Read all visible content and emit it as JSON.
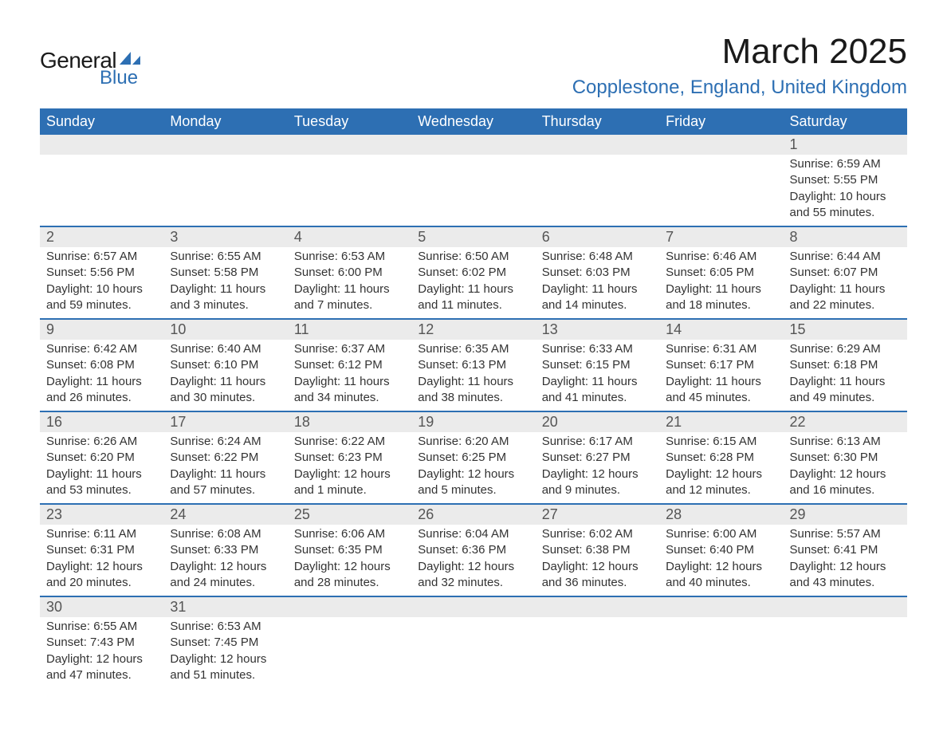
{
  "logo": {
    "text_general": "General",
    "text_blue": "Blue",
    "icon_color": "#2d6fb3"
  },
  "title": "March 2025",
  "location": "Copplestone, England, United Kingdom",
  "colors": {
    "header_bg": "#2d6fb3",
    "header_text": "#ffffff",
    "daynum_bg": "#ebebeb",
    "border": "#2d6fb3",
    "body_text": "#333333",
    "location_text": "#2d6fb3"
  },
  "weekdays": [
    "Sunday",
    "Monday",
    "Tuesday",
    "Wednesday",
    "Thursday",
    "Friday",
    "Saturday"
  ],
  "weeks": [
    [
      {
        "day": "",
        "sunrise": "",
        "sunset": "",
        "daylight1": "",
        "daylight2": ""
      },
      {
        "day": "",
        "sunrise": "",
        "sunset": "",
        "daylight1": "",
        "daylight2": ""
      },
      {
        "day": "",
        "sunrise": "",
        "sunset": "",
        "daylight1": "",
        "daylight2": ""
      },
      {
        "day": "",
        "sunrise": "",
        "sunset": "",
        "daylight1": "",
        "daylight2": ""
      },
      {
        "day": "",
        "sunrise": "",
        "sunset": "",
        "daylight1": "",
        "daylight2": ""
      },
      {
        "day": "",
        "sunrise": "",
        "sunset": "",
        "daylight1": "",
        "daylight2": ""
      },
      {
        "day": "1",
        "sunrise": "Sunrise: 6:59 AM",
        "sunset": "Sunset: 5:55 PM",
        "daylight1": "Daylight: 10 hours",
        "daylight2": "and 55 minutes."
      }
    ],
    [
      {
        "day": "2",
        "sunrise": "Sunrise: 6:57 AM",
        "sunset": "Sunset: 5:56 PM",
        "daylight1": "Daylight: 10 hours",
        "daylight2": "and 59 minutes."
      },
      {
        "day": "3",
        "sunrise": "Sunrise: 6:55 AM",
        "sunset": "Sunset: 5:58 PM",
        "daylight1": "Daylight: 11 hours",
        "daylight2": "and 3 minutes."
      },
      {
        "day": "4",
        "sunrise": "Sunrise: 6:53 AM",
        "sunset": "Sunset: 6:00 PM",
        "daylight1": "Daylight: 11 hours",
        "daylight2": "and 7 minutes."
      },
      {
        "day": "5",
        "sunrise": "Sunrise: 6:50 AM",
        "sunset": "Sunset: 6:02 PM",
        "daylight1": "Daylight: 11 hours",
        "daylight2": "and 11 minutes."
      },
      {
        "day": "6",
        "sunrise": "Sunrise: 6:48 AM",
        "sunset": "Sunset: 6:03 PM",
        "daylight1": "Daylight: 11 hours",
        "daylight2": "and 14 minutes."
      },
      {
        "day": "7",
        "sunrise": "Sunrise: 6:46 AM",
        "sunset": "Sunset: 6:05 PM",
        "daylight1": "Daylight: 11 hours",
        "daylight2": "and 18 minutes."
      },
      {
        "day": "8",
        "sunrise": "Sunrise: 6:44 AM",
        "sunset": "Sunset: 6:07 PM",
        "daylight1": "Daylight: 11 hours",
        "daylight2": "and 22 minutes."
      }
    ],
    [
      {
        "day": "9",
        "sunrise": "Sunrise: 6:42 AM",
        "sunset": "Sunset: 6:08 PM",
        "daylight1": "Daylight: 11 hours",
        "daylight2": "and 26 minutes."
      },
      {
        "day": "10",
        "sunrise": "Sunrise: 6:40 AM",
        "sunset": "Sunset: 6:10 PM",
        "daylight1": "Daylight: 11 hours",
        "daylight2": "and 30 minutes."
      },
      {
        "day": "11",
        "sunrise": "Sunrise: 6:37 AM",
        "sunset": "Sunset: 6:12 PM",
        "daylight1": "Daylight: 11 hours",
        "daylight2": "and 34 minutes."
      },
      {
        "day": "12",
        "sunrise": "Sunrise: 6:35 AM",
        "sunset": "Sunset: 6:13 PM",
        "daylight1": "Daylight: 11 hours",
        "daylight2": "and 38 minutes."
      },
      {
        "day": "13",
        "sunrise": "Sunrise: 6:33 AM",
        "sunset": "Sunset: 6:15 PM",
        "daylight1": "Daylight: 11 hours",
        "daylight2": "and 41 minutes."
      },
      {
        "day": "14",
        "sunrise": "Sunrise: 6:31 AM",
        "sunset": "Sunset: 6:17 PM",
        "daylight1": "Daylight: 11 hours",
        "daylight2": "and 45 minutes."
      },
      {
        "day": "15",
        "sunrise": "Sunrise: 6:29 AM",
        "sunset": "Sunset: 6:18 PM",
        "daylight1": "Daylight: 11 hours",
        "daylight2": "and 49 minutes."
      }
    ],
    [
      {
        "day": "16",
        "sunrise": "Sunrise: 6:26 AM",
        "sunset": "Sunset: 6:20 PM",
        "daylight1": "Daylight: 11 hours",
        "daylight2": "and 53 minutes."
      },
      {
        "day": "17",
        "sunrise": "Sunrise: 6:24 AM",
        "sunset": "Sunset: 6:22 PM",
        "daylight1": "Daylight: 11 hours",
        "daylight2": "and 57 minutes."
      },
      {
        "day": "18",
        "sunrise": "Sunrise: 6:22 AM",
        "sunset": "Sunset: 6:23 PM",
        "daylight1": "Daylight: 12 hours",
        "daylight2": "and 1 minute."
      },
      {
        "day": "19",
        "sunrise": "Sunrise: 6:20 AM",
        "sunset": "Sunset: 6:25 PM",
        "daylight1": "Daylight: 12 hours",
        "daylight2": "and 5 minutes."
      },
      {
        "day": "20",
        "sunrise": "Sunrise: 6:17 AM",
        "sunset": "Sunset: 6:27 PM",
        "daylight1": "Daylight: 12 hours",
        "daylight2": "and 9 minutes."
      },
      {
        "day": "21",
        "sunrise": "Sunrise: 6:15 AM",
        "sunset": "Sunset: 6:28 PM",
        "daylight1": "Daylight: 12 hours",
        "daylight2": "and 12 minutes."
      },
      {
        "day": "22",
        "sunrise": "Sunrise: 6:13 AM",
        "sunset": "Sunset: 6:30 PM",
        "daylight1": "Daylight: 12 hours",
        "daylight2": "and 16 minutes."
      }
    ],
    [
      {
        "day": "23",
        "sunrise": "Sunrise: 6:11 AM",
        "sunset": "Sunset: 6:31 PM",
        "daylight1": "Daylight: 12 hours",
        "daylight2": "and 20 minutes."
      },
      {
        "day": "24",
        "sunrise": "Sunrise: 6:08 AM",
        "sunset": "Sunset: 6:33 PM",
        "daylight1": "Daylight: 12 hours",
        "daylight2": "and 24 minutes."
      },
      {
        "day": "25",
        "sunrise": "Sunrise: 6:06 AM",
        "sunset": "Sunset: 6:35 PM",
        "daylight1": "Daylight: 12 hours",
        "daylight2": "and 28 minutes."
      },
      {
        "day": "26",
        "sunrise": "Sunrise: 6:04 AM",
        "sunset": "Sunset: 6:36 PM",
        "daylight1": "Daylight: 12 hours",
        "daylight2": "and 32 minutes."
      },
      {
        "day": "27",
        "sunrise": "Sunrise: 6:02 AM",
        "sunset": "Sunset: 6:38 PM",
        "daylight1": "Daylight: 12 hours",
        "daylight2": "and 36 minutes."
      },
      {
        "day": "28",
        "sunrise": "Sunrise: 6:00 AM",
        "sunset": "Sunset: 6:40 PM",
        "daylight1": "Daylight: 12 hours",
        "daylight2": "and 40 minutes."
      },
      {
        "day": "29",
        "sunrise": "Sunrise: 5:57 AM",
        "sunset": "Sunset: 6:41 PM",
        "daylight1": "Daylight: 12 hours",
        "daylight2": "and 43 minutes."
      }
    ],
    [
      {
        "day": "30",
        "sunrise": "Sunrise: 6:55 AM",
        "sunset": "Sunset: 7:43 PM",
        "daylight1": "Daylight: 12 hours",
        "daylight2": "and 47 minutes."
      },
      {
        "day": "31",
        "sunrise": "Sunrise: 6:53 AM",
        "sunset": "Sunset: 7:45 PM",
        "daylight1": "Daylight: 12 hours",
        "daylight2": "and 51 minutes."
      },
      {
        "day": "",
        "sunrise": "",
        "sunset": "",
        "daylight1": "",
        "daylight2": ""
      },
      {
        "day": "",
        "sunrise": "",
        "sunset": "",
        "daylight1": "",
        "daylight2": ""
      },
      {
        "day": "",
        "sunrise": "",
        "sunset": "",
        "daylight1": "",
        "daylight2": ""
      },
      {
        "day": "",
        "sunrise": "",
        "sunset": "",
        "daylight1": "",
        "daylight2": ""
      },
      {
        "day": "",
        "sunrise": "",
        "sunset": "",
        "daylight1": "",
        "daylight2": ""
      }
    ]
  ]
}
